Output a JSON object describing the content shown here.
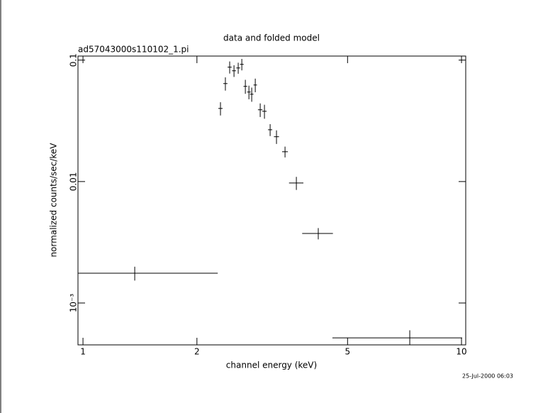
{
  "chart_data": {
    "type": "errorbar-scatter",
    "title": "data and folded model",
    "subtitle": "ad57043000s110102_1.pi",
    "x_label": "channel energy (keV)",
    "y_label": "normalized counts/sec/keV",
    "timestamp": "25-Jul-2000 06:03",
    "log_x": true,
    "log_y": true,
    "color": "#000000",
    "xlim": [
      0.97,
      10.26
    ],
    "ylim": [
      0.000452,
      0.108
    ],
    "xticks": [
      1,
      2,
      5,
      10
    ],
    "yticks": [
      0.1,
      0.01,
      {
        "value": 0.001,
        "label": "10⁻³"
      }
    ],
    "x": [
      1.37,
      2.308,
      2.378,
      2.441,
      2.506,
      2.571,
      2.628,
      2.685,
      2.744,
      2.791,
      2.852,
      2.939,
      3.016,
      3.122,
      3.245,
      3.418,
      3.662,
      4.184,
      7.3
    ],
    "xerr": [
      0.9,
      0.03,
      0.03,
      0.03,
      0.03,
      0.03,
      0.03,
      0.03,
      0.03,
      0.03,
      0.03,
      0.04,
      0.04,
      0.04,
      0.05,
      0.06,
      0.16,
      0.39,
      2.74
    ],
    "values": [
      0.00176,
      0.04,
      0.0641,
      0.0875,
      0.0817,
      0.0862,
      0.0923,
      0.0608,
      0.0546,
      0.0524,
      0.0624,
      0.039,
      0.0379,
      0.0267,
      0.0234,
      0.0176,
      0.00973,
      0.00374,
      0.000516
    ],
    "yerr": [
      0.00023,
      0.005,
      0.008,
      0.01,
      0.009,
      0.009,
      0.01,
      0.008,
      0.007,
      0.007,
      0.008,
      0.005,
      0.005,
      0.003,
      0.003,
      0.0018,
      0.0012,
      0.0004,
      8e-05
    ]
  }
}
